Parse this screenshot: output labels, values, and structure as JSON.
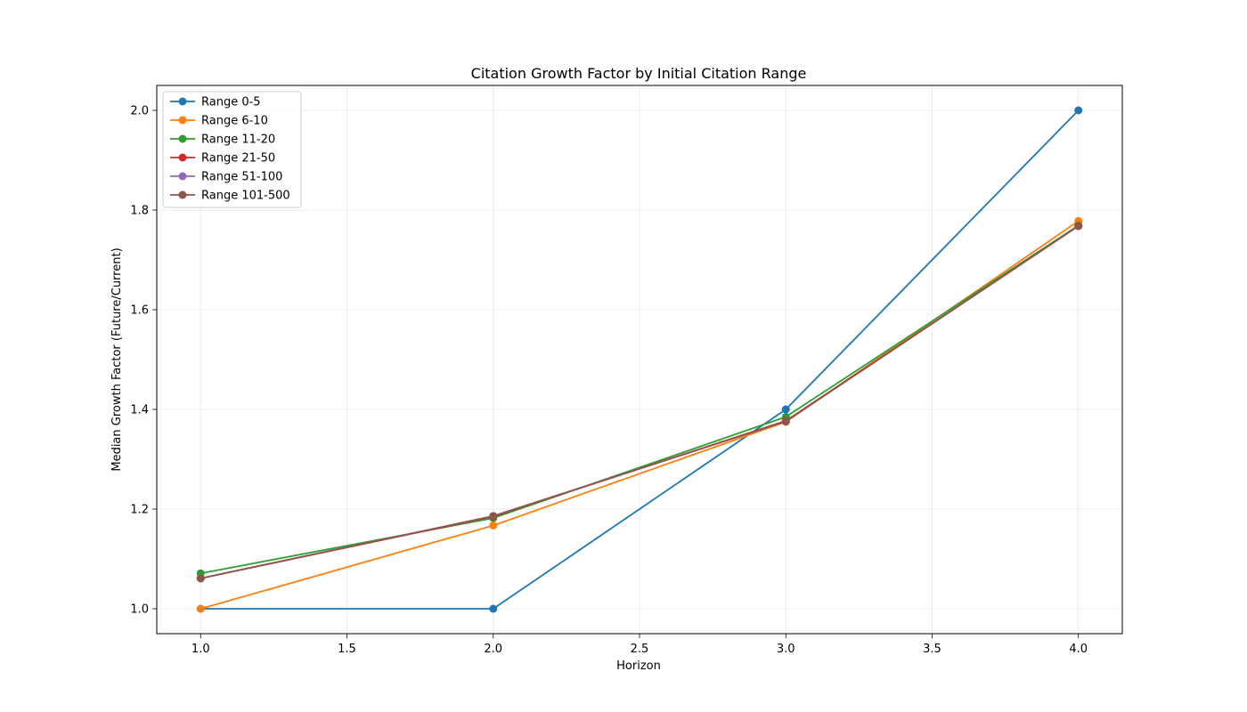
{
  "chart_data": {
    "type": "line",
    "title": "Citation Growth Factor by Initial Citation Range",
    "xlabel": "Horizon",
    "ylabel": "Median Growth Factor (Future/Current)",
    "x": [
      1.0,
      2.0,
      3.0,
      4.0
    ],
    "xlim": [
      0.85,
      4.15
    ],
    "ylim": [
      0.95,
      2.05
    ],
    "xticks": [
      1.0,
      1.5,
      2.0,
      2.5,
      3.0,
      3.5,
      4.0
    ],
    "xtick_labels": [
      "1.0",
      "1.5",
      "2.0",
      "2.5",
      "3.0",
      "3.5",
      "4.0"
    ],
    "yticks": [
      1.0,
      1.2,
      1.4,
      1.6,
      1.8,
      2.0
    ],
    "ytick_labels": [
      "1.0",
      "1.2",
      "1.4",
      "1.6",
      "1.8",
      "2.0"
    ],
    "grid": true,
    "legend_position": "top-left",
    "series": [
      {
        "name": "Range 0-5",
        "color": "#1f77b4",
        "values": [
          1.0,
          1.0,
          1.4,
          2.0
        ]
      },
      {
        "name": "Range 6-10",
        "color": "#ff7f0e",
        "values": [
          1.0,
          1.167,
          1.375,
          1.778
        ]
      },
      {
        "name": "Range 11-20",
        "color": "#2ca02c",
        "values": [
          1.071,
          1.182,
          1.385,
          1.769
        ]
      },
      {
        "name": "Range 21-50",
        "color": "#d62728",
        "values": [
          1.061,
          1.185,
          1.377,
          1.768
        ]
      },
      {
        "name": "Range 51-100",
        "color": "#9467bd",
        "values": [
          1.061,
          1.186,
          1.376,
          1.768
        ]
      },
      {
        "name": "Range 101-500",
        "color": "#8c564b",
        "values": [
          1.061,
          1.186,
          1.376,
          1.768
        ]
      }
    ]
  }
}
